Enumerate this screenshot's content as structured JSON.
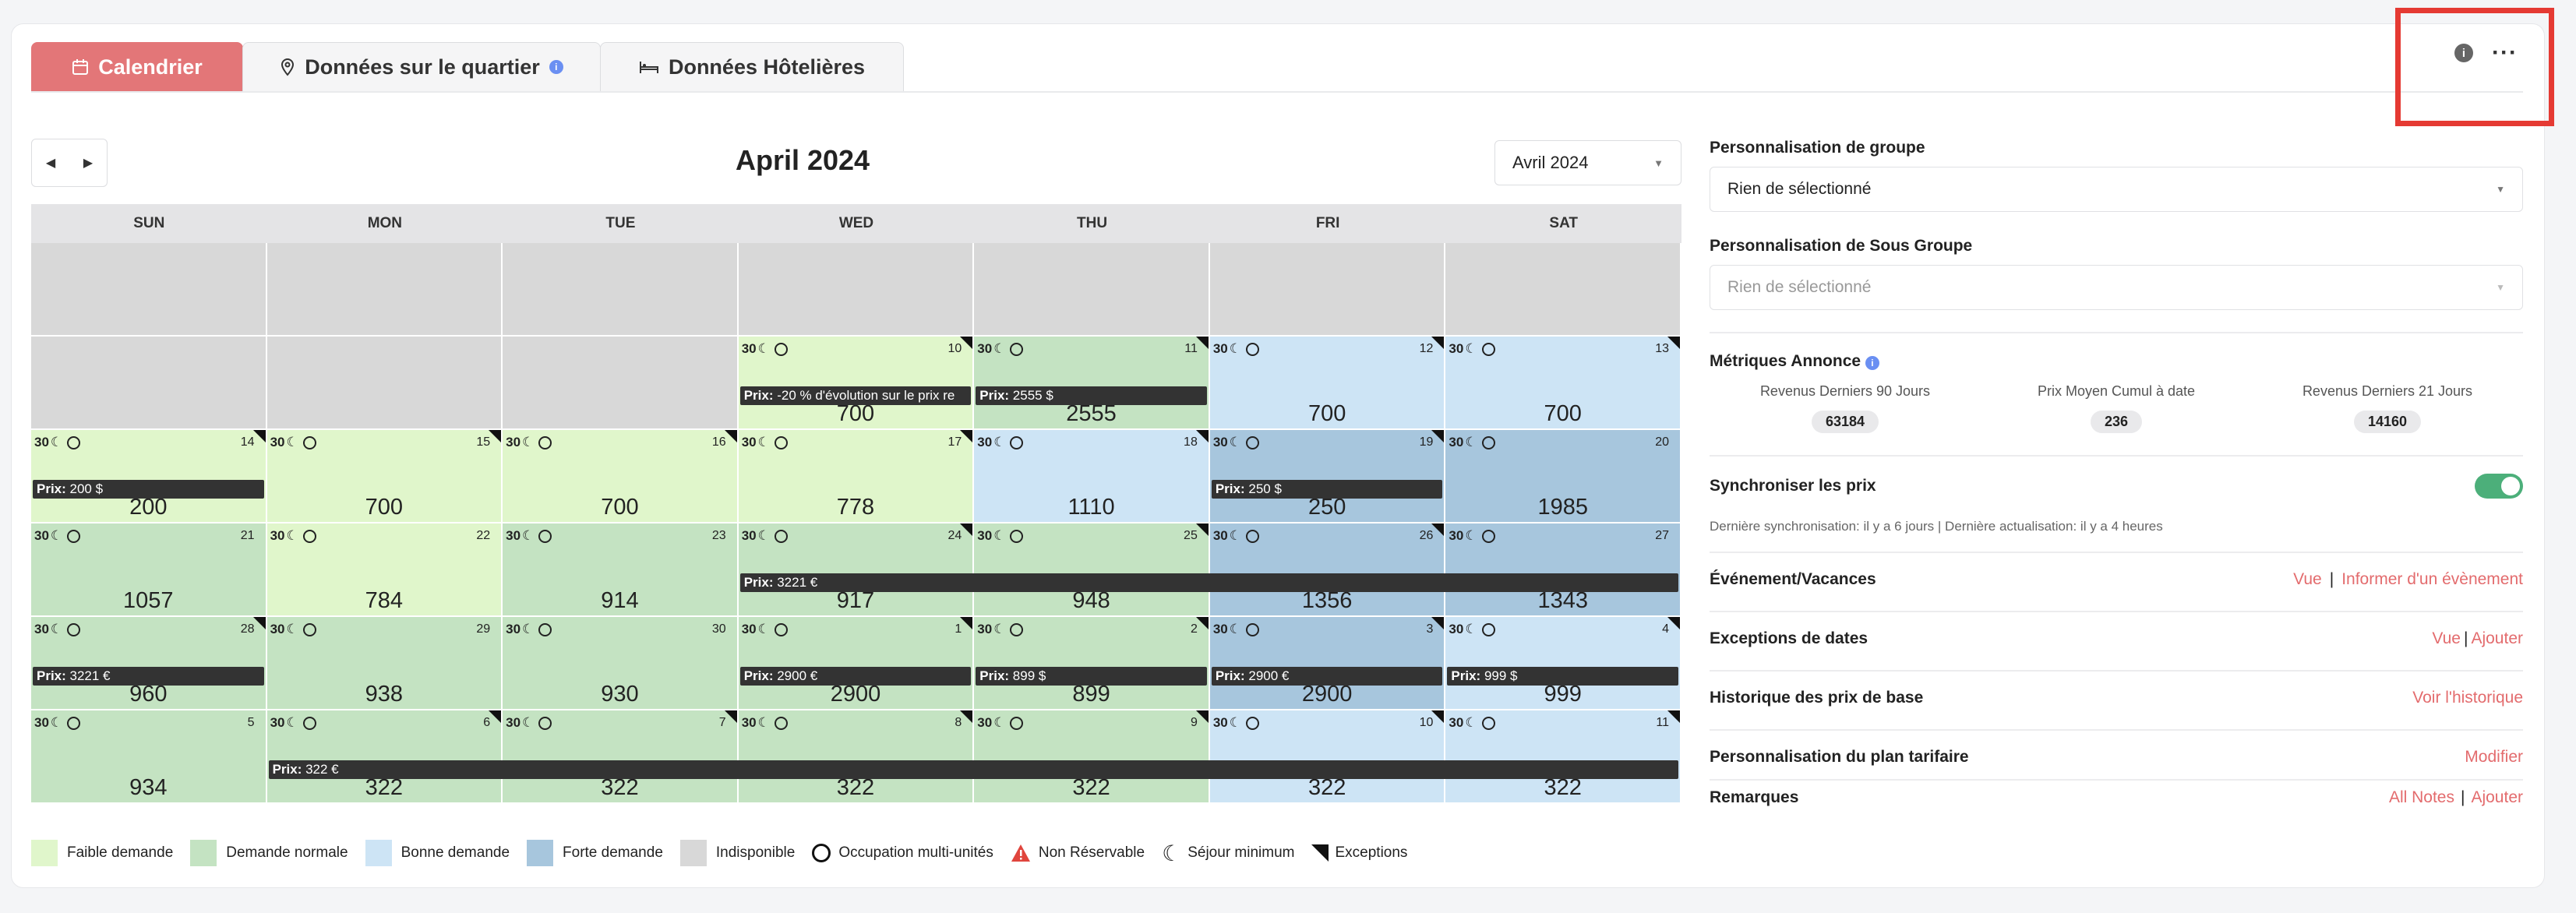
{
  "tabs": [
    {
      "label": "Calendrier",
      "icon": "calendar-icon",
      "active": true
    },
    {
      "label": "Données sur le quartier",
      "icon": "map-pin-icon",
      "active": false
    },
    {
      "label": "Données Hôtelières",
      "icon": "bed-icon",
      "active": false
    }
  ],
  "calendar": {
    "title": "April 2024",
    "month_select": "Avril 2024",
    "weekdays": [
      "SUN",
      "MON",
      "TUE",
      "WED",
      "THU",
      "FRI",
      "SAT"
    ],
    "weeks": [
      [
        {
          "t": "u"
        },
        {
          "t": "u"
        },
        {
          "t": "u"
        },
        {
          "t": "u"
        },
        {
          "t": "u"
        },
        {
          "t": "u"
        },
        {
          "t": "u"
        }
      ],
      [
        {
          "t": "u"
        },
        {
          "t": "u"
        },
        {
          "t": "u"
        },
        {
          "t": "f",
          "day": "10",
          "minstay": "30",
          "price": "700",
          "exc": true
        },
        {
          "t": "n",
          "day": "11",
          "minstay": "30",
          "price": "2555",
          "exc": true
        },
        {
          "t": "b",
          "day": "12",
          "minstay": "30",
          "price": "700",
          "exc": true
        },
        {
          "t": "b",
          "day": "13",
          "minstay": "30",
          "price": "700",
          "exc": true
        }
      ],
      [
        {
          "t": "f",
          "day": "14",
          "minstay": "30",
          "price": "200",
          "exc": true
        },
        {
          "t": "f",
          "day": "15",
          "minstay": "30",
          "price": "700",
          "exc": true
        },
        {
          "t": "f",
          "day": "16",
          "minstay": "30",
          "price": "700",
          "exc": true
        },
        {
          "t": "f",
          "day": "17",
          "minstay": "30",
          "price": "778",
          "exc": true
        },
        {
          "t": "b",
          "day": "18",
          "minstay": "30",
          "price": "1110",
          "exc": true
        },
        {
          "t": "h",
          "day": "19",
          "minstay": "30",
          "price": "250",
          "exc": true
        },
        {
          "t": "h",
          "day": "20",
          "minstay": "30",
          "price": "1985",
          "exc": false
        }
      ],
      [
        {
          "t": "n",
          "day": "21",
          "minstay": "30",
          "price": "1057",
          "exc": false
        },
        {
          "t": "f",
          "day": "22",
          "minstay": "30",
          "price": "784",
          "exc": false
        },
        {
          "t": "n",
          "day": "23",
          "minstay": "30",
          "price": "914",
          "exc": false
        },
        {
          "t": "n",
          "day": "24",
          "minstay": "30",
          "price": "917",
          "exc": true
        },
        {
          "t": "n",
          "day": "25",
          "minstay": "30",
          "price": "948",
          "exc": true
        },
        {
          "t": "h",
          "day": "26",
          "minstay": "30",
          "price": "1356",
          "exc": true
        },
        {
          "t": "h",
          "day": "27",
          "minstay": "30",
          "price": "1343",
          "exc": false
        }
      ],
      [
        {
          "t": "n",
          "day": "28",
          "minstay": "30",
          "price": "960",
          "exc": true
        },
        {
          "t": "n",
          "day": "29",
          "minstay": "30",
          "price": "938",
          "exc": false
        },
        {
          "t": "n",
          "day": "30",
          "minstay": "30",
          "price": "930",
          "exc": false
        },
        {
          "t": "n",
          "day": "1",
          "minstay": "30",
          "price": "2900",
          "exc": true
        },
        {
          "t": "n",
          "day": "2",
          "minstay": "30",
          "price": "899",
          "exc": true
        },
        {
          "t": "h",
          "day": "3",
          "minstay": "30",
          "price": "2900",
          "exc": true
        },
        {
          "t": "b",
          "day": "4",
          "minstay": "30",
          "price": "999",
          "exc": true
        }
      ],
      [
        {
          "t": "n",
          "day": "5",
          "minstay": "30",
          "price": "934",
          "exc": false
        },
        {
          "t": "n",
          "day": "6",
          "minstay": "30",
          "price": "322",
          "exc": true
        },
        {
          "t": "n",
          "day": "7",
          "minstay": "30",
          "price": "322",
          "exc": true
        },
        {
          "t": "n",
          "day": "8",
          "minstay": "30",
          "price": "322",
          "exc": true
        },
        {
          "t": "n",
          "day": "9",
          "minstay": "30",
          "price": "322",
          "exc": true
        },
        {
          "t": "b",
          "day": "10",
          "minstay": "30",
          "price": "322",
          "exc": true
        },
        {
          "t": "b",
          "day": "11",
          "minstay": "30",
          "price": "322",
          "exc": true
        }
      ]
    ],
    "bars": [
      {
        "week": 1,
        "start": 3,
        "span": 1,
        "label": "Prix:",
        "text": " -20 % d'évolution sur le prix re"
      },
      {
        "week": 1,
        "start": 4,
        "span": 1,
        "label": "Prix:",
        "text": " 2555 $"
      },
      {
        "week": 2,
        "start": 0,
        "span": 1,
        "label": "Prix:",
        "text": " 200 $"
      },
      {
        "week": 2,
        "start": 5,
        "span": 1,
        "label": "Prix:",
        "text": " 250 $"
      },
      {
        "week": 3,
        "start": 3,
        "span": 4,
        "label": "Prix:",
        "text": " 3221 €"
      },
      {
        "week": 4,
        "start": 0,
        "span": 1,
        "label": "Prix:",
        "text": " 3221 €"
      },
      {
        "week": 4,
        "start": 3,
        "span": 1,
        "label": "Prix:",
        "text": " 2900 €"
      },
      {
        "week": 4,
        "start": 4,
        "span": 1,
        "label": "Prix:",
        "text": " 899 $"
      },
      {
        "week": 4,
        "start": 5,
        "span": 1,
        "label": "Prix:",
        "text": " 2900 €"
      },
      {
        "week": 4,
        "start": 6,
        "span": 1,
        "label": "Prix:",
        "text": " 999 $"
      },
      {
        "week": 5,
        "start": 1,
        "span": 6,
        "label": "Prix:",
        "text": " 322 €"
      }
    ]
  },
  "legend": [
    {
      "label": "Faible demande",
      "color": "#e0f6cb",
      "kind": "swatch"
    },
    {
      "label": "Demande normale",
      "color": "#c4e3c2",
      "kind": "swatch"
    },
    {
      "label": "Bonne demande",
      "color": "#cde4f5",
      "kind": "swatch"
    },
    {
      "label": "Forte demande",
      "color": "#a7c6dd",
      "kind": "swatch"
    },
    {
      "label": "Indisponible",
      "color": "#d8d8d8",
      "kind": "swatch"
    },
    {
      "label": "Occupation multi-unités",
      "kind": "ring"
    },
    {
      "label": "Non Réservable",
      "kind": "warn"
    },
    {
      "label": "Séjour minimum",
      "kind": "moon"
    },
    {
      "label": "Exceptions",
      "kind": "tri"
    }
  ],
  "panel": {
    "group_title": "Personnalisation de groupe",
    "group_value": "Rien de sélectionné",
    "subgroup_title": "Personnalisation de Sous Groupe",
    "subgroup_value": "Rien de sélectionné",
    "metrics_title": "Métriques Annonce",
    "metrics": [
      {
        "label": "Revenus Derniers 90 Jours",
        "value": "63184"
      },
      {
        "label": "Prix Moyen Cumul à date",
        "value": "236"
      },
      {
        "label": "Revenus Derniers 21 Jours",
        "value": "14160"
      }
    ],
    "sync_title": "Synchroniser les prix",
    "sync_note": "Dernière synchronisation: il y a 6 jours | Dernière actualisation: il y a 4 heures",
    "events_title": "Événement/Vacances",
    "events_view": "Vue",
    "events_inform": "Informer d'un évènement",
    "exceptions_title": "Exceptions de dates",
    "exceptions_view": "Vue",
    "exceptions_add": "Ajouter",
    "history_title": "Historique des prix de base",
    "history_link": "Voir l'historique",
    "plan_title": "Personnalisation du plan tarifaire",
    "plan_link": "Modifier",
    "notes_title": "Remarques",
    "notes_all": "All Notes",
    "notes_add": "Ajouter"
  },
  "colors": {
    "accent": "#e37678",
    "link": "#e36b6d",
    "toggle": "#4caf7a"
  }
}
